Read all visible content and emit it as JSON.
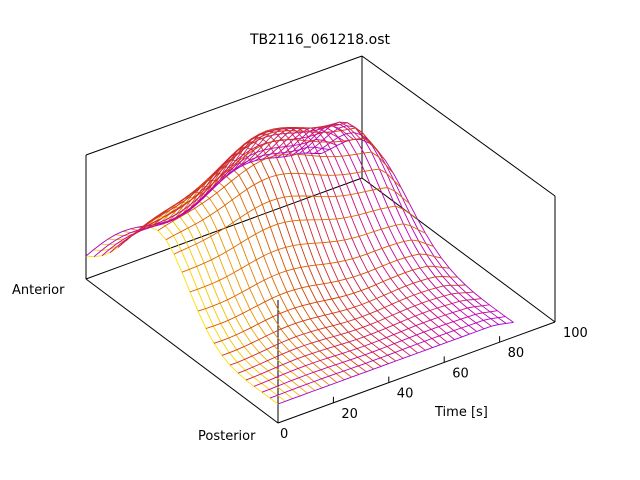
{
  "chart_data": {
    "type": "surface-mesh",
    "title": "TB2116_061218.ost",
    "xlabel": "Time [s]",
    "xticks": [
      "0",
      "20",
      "40",
      "60",
      "80",
      "100"
    ],
    "xlim": [
      0,
      100
    ],
    "y_end_labels": {
      "front": "Posterior",
      "back": "Anterior"
    },
    "grid_columns": 32,
    "grid_rows": 24,
    "surface_description": "height profile across the anterior-posterior axis over time",
    "colormap": [
      "#8a00ff",
      "#c800a0",
      "#d04000",
      "#ffe000"
    ]
  }
}
